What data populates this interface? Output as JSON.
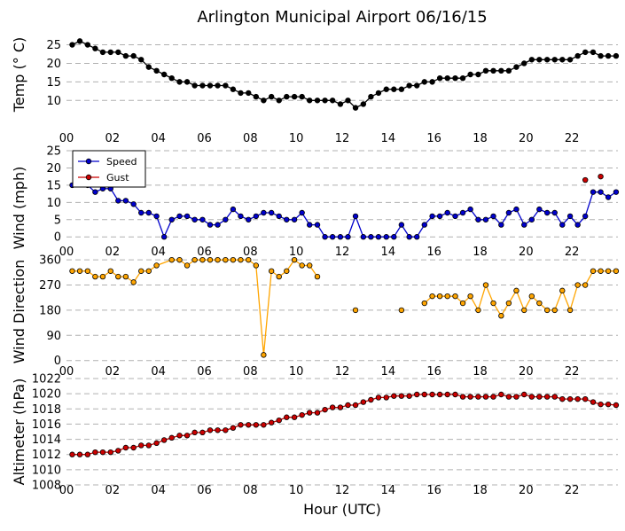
{
  "chart_data": {
    "type": "line",
    "title": "Arlington Municipal Airport 06/16/15",
    "xlabel": "Hour (UTC)",
    "xlim": [
      0,
      24
    ],
    "x_ticks": [
      0,
      2,
      4,
      6,
      8,
      10,
      12,
      14,
      16,
      18,
      20,
      22
    ],
    "x_tick_labels": [
      "00",
      "02",
      "04",
      "06",
      "08",
      "10",
      "12",
      "14",
      "16",
      "18",
      "20",
      "22"
    ],
    "colors": {
      "temp": "#000000",
      "speed": "#0000cc",
      "gust": "#cc0000",
      "direction_line": "#ffa500",
      "direction_marker": "#ffa500",
      "altimeter_line": "#cc0000",
      "altimeter_marker": "#cc0000",
      "grid": "#b0b0b0"
    },
    "panels": [
      {
        "id": "temp",
        "ylabel": "Temp ($^\\circ$C)",
        "ylabel_display": "Temp (° C)",
        "ylim": [
          6,
          28
        ],
        "y_ticks": [
          10,
          15,
          20,
          25
        ],
        "y_tick_labels": [
          "10",
          "15",
          "20",
          "25"
        ],
        "series": [
          {
            "name": "Temp",
            "x": [
              0.25,
              0.58,
              0.92,
              1.25,
              1.58,
              1.92,
              2.25,
              2.58,
              2.92,
              3.25,
              3.58,
              3.92,
              4.25,
              4.58,
              4.92,
              5.25,
              5.58,
              5.92,
              6.25,
              6.58,
              6.92,
              7.25,
              7.58,
              7.92,
              8.25,
              8.58,
              8.92,
              9.25,
              9.58,
              9.92,
              10.25,
              10.58,
              10.92,
              11.25,
              11.58,
              11.92,
              12.25,
              12.58,
              12.92,
              13.25,
              13.58,
              13.92,
              14.25,
              14.58,
              14.92,
              15.25,
              15.58,
              15.92,
              16.25,
              16.58,
              16.92,
              17.25,
              17.58,
              17.92,
              18.25,
              18.58,
              18.92,
              19.25,
              19.58,
              19.92,
              20.25,
              20.58,
              20.92,
              21.25,
              21.58,
              21.92,
              22.25,
              22.58,
              22.92,
              23.25,
              23.58,
              23.92
            ],
            "values": [
              25,
              26,
              25,
              24,
              23,
              23,
              23,
              22,
              22,
              21,
              19,
              18,
              17,
              16,
              15,
              15,
              14,
              14,
              14,
              14,
              14,
              13,
              12,
              12,
              11,
              10,
              11,
              10,
              11,
              11,
              11,
              10,
              10,
              10,
              10,
              9,
              10,
              8,
              9,
              11,
              12,
              13,
              13,
              13,
              14,
              14,
              15,
              15,
              16,
              16,
              16,
              16,
              17,
              17,
              18,
              18,
              18,
              18,
              19,
              20,
              21,
              21,
              21,
              21,
              21,
              21,
              22,
              23,
              23,
              22,
              22,
              22
            ]
          }
        ]
      },
      {
        "id": "wind",
        "ylabel": "Wind (mph)",
        "ylim": [
          -2,
          25
        ],
        "y_ticks": [
          0,
          5,
          10,
          15,
          20,
          25
        ],
        "y_tick_labels": [
          "0",
          "5",
          "10",
          "15",
          "20",
          "25"
        ],
        "legend": {
          "placement": "upper-left",
          "entries": [
            "Speed",
            "Gust"
          ]
        },
        "series": [
          {
            "name": "Speed",
            "x": [
              0.25,
              0.58,
              0.92,
              1.25,
              1.58,
              1.92,
              2.25,
              2.58,
              2.92,
              3.25,
              3.58,
              3.92,
              4.25,
              4.58,
              4.92,
              5.25,
              5.58,
              5.92,
              6.25,
              6.58,
              6.92,
              7.25,
              7.58,
              7.92,
              8.25,
              8.58,
              8.92,
              9.25,
              9.58,
              9.92,
              10.25,
              10.58,
              10.92,
              11.25,
              11.58,
              11.92,
              12.25,
              12.58,
              12.92,
              13.25,
              13.58,
              13.92,
              14.25,
              14.58,
              14.92,
              15.25,
              15.58,
              15.92,
              16.25,
              16.58,
              16.92,
              17.25,
              17.58,
              17.92,
              18.25,
              18.58,
              18.92,
              19.25,
              19.58,
              19.92,
              20.25,
              20.58,
              20.92,
              21.25,
              21.58,
              21.92,
              22.25,
              22.58,
              22.92,
              23.25,
              23.58,
              23.92
            ],
            "values": [
              15,
              16,
              15,
              13,
              14,
              14,
              10.5,
              10.5,
              9.5,
              7,
              7,
              6,
              0,
              5,
              6,
              6,
              5,
              5,
              3.5,
              3.5,
              5,
              8,
              6,
              5,
              6,
              7,
              7,
              6,
              5,
              5,
              7,
              3.5,
              3.5,
              0,
              0,
              0,
              0,
              6,
              0,
              0,
              0,
              0,
              0,
              3.5,
              0,
              0,
              3.5,
              6,
              6,
              7,
              6,
              7,
              8,
              5,
              5,
              6,
              3.5,
              7,
              8,
              3.5,
              5,
              8,
              7,
              7,
              3.5,
              6,
              3.5,
              6,
              13,
              13,
              11.5,
              13
            ]
          },
          {
            "name": "Gust",
            "x": [
              22.58,
              23.25
            ],
            "values": [
              16.5,
              17.5
            ]
          }
        ]
      },
      {
        "id": "direction",
        "ylabel": "Wind Direction",
        "ylim": [
          -20,
          370
        ],
        "y_ticks": [
          0,
          90,
          180,
          270,
          360
        ],
        "y_tick_labels": [
          "0",
          "90",
          "180",
          "270",
          "360"
        ],
        "series": [
          {
            "name": "Wind Direction",
            "x": [
              0.25,
              0.58,
              0.92,
              1.25,
              1.58,
              1.92,
              2.25,
              2.58,
              2.92,
              3.25,
              3.58,
              3.92,
              4.58,
              4.92,
              5.25,
              5.58,
              5.92,
              6.25,
              6.58,
              6.92,
              7.25,
              7.58,
              7.92,
              8.25,
              8.58,
              8.92,
              9.25,
              9.58,
              9.92,
              10.25,
              10.58,
              10.92
            ],
            "values": [
              320,
              320,
              320,
              300,
              300,
              320,
              300,
              300,
              280,
              320,
              320,
              340,
              360,
              360,
              340,
              360,
              360,
              360,
              360,
              360,
              360,
              360,
              360,
              340,
              20,
              320,
              300,
              320,
              360,
              340,
              340,
              300
            ]
          },
          {
            "name": "Wind Direction (isolated)",
            "x": [
              12.58,
              14.58
            ],
            "values": [
              180,
              180
            ]
          },
          {
            "name": "Wind Direction (afternoon)",
            "x": [
              15.58,
              15.92,
              16.25,
              16.58,
              16.92,
              17.25,
              17.58,
              17.92,
              18.25,
              18.58,
              18.92,
              19.25,
              19.58,
              19.92,
              20.25,
              20.58,
              20.92,
              21.25,
              21.58,
              21.92,
              22.25,
              22.58,
              22.92,
              23.25,
              23.58,
              23.92
            ],
            "values": [
              205,
              230,
              230,
              230,
              230,
              205,
              230,
              180,
              270,
              205,
              160,
              205,
              250,
              180,
              230,
              205,
              180,
              180,
              250,
              180,
              270,
              270,
              320,
              320,
              320,
              320
            ]
          }
        ]
      },
      {
        "id": "altimeter",
        "ylabel": "Altimeter (hPa)",
        "ylim": [
          1008,
          1022
        ],
        "y_ticks": [
          1008,
          1010,
          1012,
          1014,
          1016,
          1018,
          1020,
          1022
        ],
        "y_tick_labels": [
          "1008",
          "1010",
          "1012",
          "1014",
          "1016",
          "1018",
          "1020",
          "1022"
        ],
        "series": [
          {
            "name": "Altimeter",
            "x": [
              0.25,
              0.58,
              0.92,
              1.25,
              1.58,
              1.92,
              2.25,
              2.58,
              2.92,
              3.25,
              3.58,
              3.92,
              4.25,
              4.58,
              4.92,
              5.25,
              5.58,
              5.92,
              6.25,
              6.58,
              6.92,
              7.25,
              7.58,
              7.92,
              8.25,
              8.58,
              8.92,
              9.25,
              9.58,
              9.92,
              10.25,
              10.58,
              10.92,
              11.25,
              11.58,
              11.92,
              12.25,
              12.58,
              12.92,
              13.25,
              13.58,
              13.92,
              14.25,
              14.58,
              14.92,
              15.25,
              15.58,
              15.92,
              16.25,
              16.58,
              16.92,
              17.25,
              17.58,
              17.92,
              18.25,
              18.58,
              18.92,
              19.25,
              19.58,
              19.92,
              20.25,
              20.58,
              20.92,
              21.25,
              21.58,
              21.92,
              22.25,
              22.58,
              22.92,
              23.25,
              23.58,
              23.92
            ],
            "values": [
              1012,
              1012,
              1012,
              1012.3,
              1012.3,
              1012.3,
              1012.5,
              1012.9,
              1012.9,
              1013.2,
              1013.2,
              1013.5,
              1013.9,
              1014.2,
              1014.5,
              1014.5,
              1014.9,
              1014.9,
              1015.2,
              1015.2,
              1015.2,
              1015.5,
              1015.9,
              1015.9,
              1015.9,
              1015.9,
              1016.2,
              1016.5,
              1016.9,
              1016.9,
              1017.2,
              1017.5,
              1017.5,
              1017.9,
              1018.2,
              1018.2,
              1018.5,
              1018.5,
              1018.9,
              1019.2,
              1019.5,
              1019.5,
              1019.7,
              1019.7,
              1019.7,
              1019.9,
              1019.9,
              1019.9,
              1019.9,
              1019.9,
              1019.9,
              1019.6,
              1019.6,
              1019.6,
              1019.6,
              1019.6,
              1019.9,
              1019.6,
              1019.6,
              1019.9,
              1019.6,
              1019.6,
              1019.6,
              1019.6,
              1019.3,
              1019.3,
              1019.3,
              1019.3,
              1018.9,
              1018.6,
              1018.6,
              1018.5
            ]
          }
        ]
      }
    ]
  }
}
